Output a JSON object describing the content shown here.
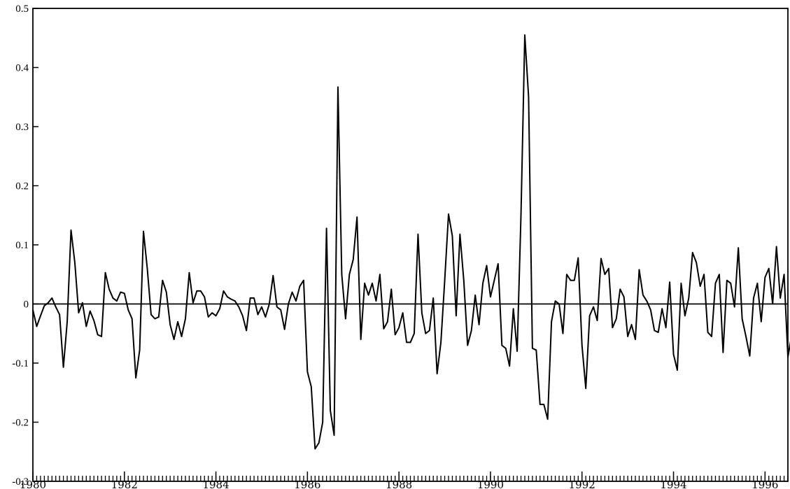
{
  "chart_data": {
    "type": "line",
    "title": "",
    "xlabel": "",
    "ylabel": "",
    "ylim": [
      -0.3,
      0.5
    ],
    "xlim": [
      1980.0,
      1996.5
    ],
    "yticks": [
      -0.3,
      -0.2,
      -0.1,
      0,
      0.1,
      0.2,
      0.3,
      0.4,
      0.5
    ],
    "ytick_labels": [
      "-0.3",
      "-0.2",
      "-0.1",
      "0",
      "0.1",
      "0.2",
      "0.3",
      "0.4",
      "0.5"
    ],
    "xticks": [
      1980,
      1982,
      1984,
      1986,
      1988,
      1990,
      1992,
      1994,
      1996
    ],
    "xtick_labels": [
      "1980",
      "1982",
      "1984",
      "1986",
      "1988",
      "1990",
      "1992",
      "1994",
      "1996"
    ],
    "minor_tick_step": 0.0833333,
    "zero_line": true,
    "grid": false,
    "series": [
      {
        "x_start": 1980.0,
        "x_step": 0.0833333,
        "color": "#000000",
        "values": [
          -0.01,
          -0.038,
          -0.02,
          -0.003,
          0.002,
          0.01,
          -0.005,
          -0.018,
          -0.107,
          -0.03,
          0.125,
          0.07,
          -0.015,
          0.002,
          -0.038,
          -0.012,
          -0.028,
          -0.052,
          -0.055,
          0.053,
          0.025,
          0.01,
          0.005,
          0.02,
          0.018,
          -0.01,
          -0.025,
          -0.125,
          -0.078,
          0.123,
          0.06,
          -0.018,
          -0.025,
          -0.022,
          0.04,
          0.02,
          -0.035,
          -0.06,
          -0.03,
          -0.055,
          -0.025,
          0.053,
          0.002,
          0.022,
          0.022,
          0.012,
          -0.022,
          -0.015,
          -0.02,
          -0.008,
          0.022,
          0.012,
          0.008,
          0.005,
          -0.005,
          -0.02,
          -0.045,
          0.01,
          0.01,
          -0.018,
          -0.005,
          -0.022,
          0.0,
          0.048,
          -0.005,
          -0.01,
          -0.043,
          0.0,
          0.02,
          0.005,
          0.03,
          0.04,
          -0.115,
          -0.14,
          -0.245,
          -0.235,
          -0.2,
          0.128,
          -0.18,
          -0.222,
          0.367,
          0.05,
          -0.025,
          0.05,
          0.075,
          0.147,
          -0.06,
          0.035,
          0.015,
          0.035,
          0.005,
          0.05,
          -0.042,
          -0.03,
          0.025,
          -0.052,
          -0.04,
          -0.015,
          -0.065,
          -0.065,
          -0.05,
          0.118,
          -0.015,
          -0.05,
          -0.045,
          0.01,
          -0.118,
          -0.065,
          0.04,
          0.152,
          0.115,
          -0.02,
          0.118,
          0.04,
          -0.07,
          -0.045,
          0.015,
          -0.035,
          0.035,
          0.065,
          0.012,
          0.04,
          0.068,
          -0.07,
          -0.075,
          -0.105,
          -0.008,
          -0.08,
          0.15,
          0.455,
          0.35,
          -0.075,
          -0.078,
          -0.17,
          -0.17,
          -0.195,
          -0.03,
          0.005,
          0.0,
          -0.05,
          0.05,
          0.04,
          0.04,
          0.078,
          -0.07,
          -0.143,
          -0.02,
          -0.005,
          -0.028,
          0.077,
          0.05,
          0.06,
          -0.04,
          -0.025,
          0.025,
          0.012,
          -0.055,
          -0.035,
          -0.06,
          0.058,
          0.015,
          0.005,
          -0.01,
          -0.045,
          -0.048,
          -0.008,
          -0.04,
          0.037,
          -0.085,
          -0.112,
          0.035,
          -0.02,
          0.01,
          0.087,
          0.07,
          0.03,
          0.05,
          -0.048,
          -0.055,
          0.035,
          0.05,
          -0.082,
          0.04,
          0.035,
          -0.005,
          0.095,
          -0.025,
          -0.055,
          -0.088,
          0.01,
          0.035,
          -0.03,
          0.045,
          0.06,
          0.0,
          0.097,
          0.01,
          0.05,
          -0.09,
          -0.052
        ]
      }
    ]
  }
}
